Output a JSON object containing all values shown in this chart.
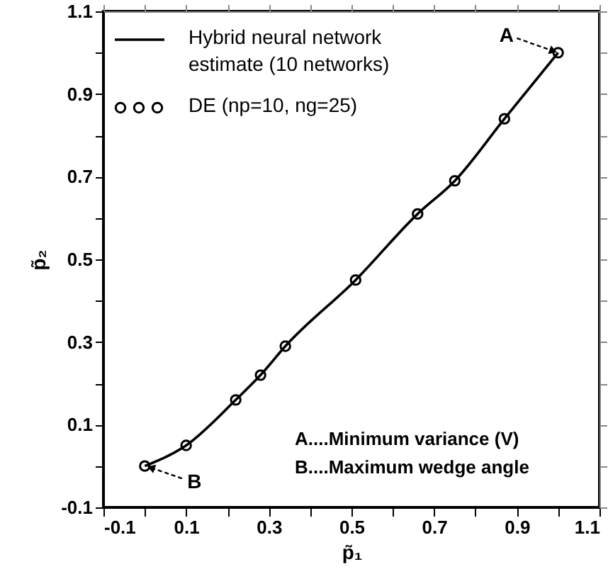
{
  "chart_data": {
    "type": "line",
    "xlabel": "p̃₁",
    "ylabel": "p̃₂",
    "xlim": [
      -0.1,
      1.1
    ],
    "ylim": [
      -0.1,
      1.1
    ],
    "xticks": [
      -0.1,
      {
        "value": 0,
        "label": null
      },
      0.1,
      {
        "value": 0.2,
        "label": null
      },
      0.3,
      {
        "value": 0.4,
        "label": null
      },
      0.5,
      {
        "value": 0.6,
        "label": null
      },
      0.7,
      {
        "value": 0.8,
        "label": null
      },
      0.9,
      {
        "value": 1.0,
        "label": null
      },
      1.1
    ],
    "yticks": [
      -0.1,
      {
        "value": 0,
        "label": null
      },
      0.1,
      {
        "value": 0.2,
        "label": null
      },
      0.3,
      {
        "value": 0.4,
        "label": null
      },
      0.5,
      {
        "value": 0.6,
        "label": null
      },
      0.7,
      {
        "value": 0.8,
        "label": null
      },
      0.9,
      {
        "value": 1.0,
        "label": null
      },
      1.1
    ],
    "legend": "top left",
    "series": [
      {
        "name": "Hybrid neural network estimate (10 networks)",
        "type": "line",
        "color": "#000000",
        "x": [
          0,
          0.1,
          0.22,
          0.28,
          0.34,
          0.51,
          0.66,
          0.75,
          0.87,
          1.0
        ],
        "values": [
          0,
          0.05,
          0.16,
          0.22,
          0.29,
          0.45,
          0.61,
          0.69,
          0.84,
          1.0
        ]
      },
      {
        "name": "DE (np=10, ng=25)",
        "type": "scatter",
        "marker": "circle",
        "color": "#000000",
        "x": [
          0,
          0.1,
          0.22,
          0.28,
          0.34,
          0.51,
          0.66,
          0.75,
          0.87,
          1.0
        ],
        "values": [
          0,
          0.05,
          0.16,
          0.22,
          0.29,
          0.45,
          0.61,
          0.69,
          0.84,
          1.0
        ]
      }
    ],
    "annotations": [
      {
        "text": "A",
        "x": 1.0,
        "y": 1.0
      },
      {
        "text": "B",
        "x": 0,
        "y": 0
      },
      "A....Minimum variance (V)",
      "B....Maximum wedge angle"
    ]
  }
}
